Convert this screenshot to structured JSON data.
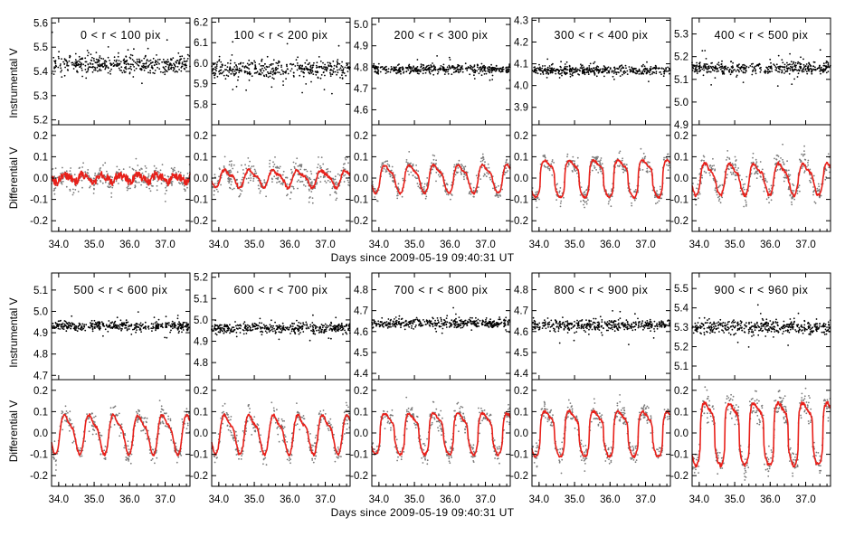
{
  "figure": {
    "ylabel_top": "Instrumental V",
    "ylabel_bottom": "Differential V",
    "xlabel": "Days since 2009-05-19 09:40:31 UT",
    "colors": {
      "model": "#e8201a",
      "instrumental_points": "#000000",
      "differential_points": "#7a7a7a",
      "frame": "#000000"
    }
  },
  "chart_data": [
    {
      "type": "scatter",
      "title": "0 < r < 100 pix",
      "xlabel": "",
      "x_ticks": [
        "34.0",
        "35.0",
        "36.0",
        "37.0"
      ],
      "xlim": [
        33.8,
        37.7
      ],
      "inst": {
        "ylim": [
          5.18,
          5.62
        ],
        "y_ticks": [
          "5.2",
          "5.3",
          "5.4",
          "5.5",
          "5.6"
        ],
        "level": 5.43,
        "scatter": 0.035
      },
      "diff": {
        "ylim": [
          -0.25,
          0.25
        ],
        "y_ticks": [
          "-0.2",
          "-0.1",
          "0.0",
          "0.1",
          "0.2"
        ],
        "amplitude": 0.02,
        "period": 0.52,
        "sharpness": 1,
        "noise": 0.025,
        "series": [
          {
            "label_visible": false,
            "kind": "points"
          },
          {
            "label_visible": false,
            "kind": "model_curve"
          }
        ]
      }
    },
    {
      "type": "scatter",
      "title": "100 < r < 200 pix",
      "xlabel": "",
      "x_ticks": [
        "34.0",
        "35.0",
        "36.0",
        "37.0"
      ],
      "xlim": [
        33.8,
        37.7
      ],
      "inst": {
        "ylim": [
          5.7,
          6.22
        ],
        "y_ticks": [
          "5.8",
          "5.9",
          "6.0",
          "6.1",
          "6.2"
        ],
        "level": 5.97,
        "scatter": 0.04
      },
      "diff": {
        "ylim": [
          -0.25,
          0.25
        ],
        "y_ticks": [
          "-0.2",
          "-0.1",
          "0.0",
          "0.1",
          "0.2"
        ],
        "amplitude": 0.045,
        "period": 0.68,
        "sharpness": 1,
        "noise": 0.03,
        "series": [
          {
            "label_visible": false,
            "kind": "points"
          },
          {
            "label_visible": false,
            "kind": "model_curve"
          }
        ]
      }
    },
    {
      "type": "scatter",
      "title": "200 < r < 300 pix",
      "xlabel": "",
      "x_ticks": [
        "34.0",
        "35.0",
        "36.0",
        "37.0"
      ],
      "xlim": [
        33.8,
        37.7
      ],
      "inst": {
        "ylim": [
          4.53,
          5.03
        ],
        "y_ticks": [
          "4.6",
          "4.7",
          "4.8",
          "4.9",
          "5.0"
        ],
        "level": 4.79,
        "scatter": 0.02
      },
      "diff": {
        "ylim": [
          -0.25,
          0.25
        ],
        "y_ticks": [
          "-0.2",
          "-0.1",
          "0.0",
          "0.1",
          "0.2"
        ],
        "amplitude": 0.07,
        "period": 0.69,
        "sharpness": 1.4,
        "noise": 0.02,
        "series": [
          {
            "label_visible": false,
            "kind": "points"
          },
          {
            "label_visible": false,
            "kind": "model_curve"
          }
        ]
      }
    },
    {
      "type": "scatter",
      "title": "300 < r < 400 pix",
      "xlabel": "",
      "x_ticks": [
        "34.0",
        "35.0",
        "36.0",
        "37.0"
      ],
      "xlim": [
        33.8,
        37.7
      ],
      "inst": {
        "ylim": [
          3.82,
          4.31
        ],
        "y_ticks": [
          "3.9",
          "4.0",
          "4.1",
          "4.2",
          "4.3"
        ],
        "level": 4.07,
        "scatter": 0.02
      },
      "diff": {
        "ylim": [
          -0.25,
          0.25
        ],
        "y_ticks": [
          "-0.2",
          "-0.1",
          "0.0",
          "0.1",
          "0.2"
        ],
        "amplitude": 0.09,
        "period": 0.69,
        "sharpness": 2.5,
        "noise": 0.02,
        "series": [
          {
            "label_visible": false,
            "kind": "points"
          },
          {
            "label_visible": false,
            "kind": "model_curve"
          }
        ]
      }
    },
    {
      "type": "scatter",
      "title": "400 < r < 500 pix",
      "xlabel": "",
      "x_ticks": [
        "34.0",
        "35.0",
        "36.0",
        "37.0"
      ],
      "xlim": [
        33.8,
        37.7
      ],
      "inst": {
        "ylim": [
          4.9,
          5.37
        ],
        "y_ticks": [
          "4.9",
          "5.0",
          "5.1",
          "5.2",
          "5.3"
        ],
        "level": 5.15,
        "scatter": 0.025
      },
      "diff": {
        "ylim": [
          -0.25,
          0.25
        ],
        "y_ticks": [
          "-0.2",
          "-0.1",
          "0.0",
          "0.1",
          "0.2"
        ],
        "amplitude": 0.08,
        "period": 0.69,
        "sharpness": 1.3,
        "noise": 0.03,
        "series": [
          {
            "label_visible": false,
            "kind": "points"
          },
          {
            "label_visible": false,
            "kind": "model_curve"
          }
        ]
      }
    },
    {
      "type": "scatter",
      "title": "500 < r < 600 pix",
      "xlabel": "",
      "x_ticks": [
        "34.0",
        "35.0",
        "36.0",
        "37.0"
      ],
      "xlim": [
        33.8,
        37.7
      ],
      "inst": {
        "ylim": [
          4.68,
          5.18
        ],
        "y_ticks": [
          "4.7",
          "4.8",
          "4.9",
          "5.0",
          "5.1"
        ],
        "level": 4.93,
        "scatter": 0.02
      },
      "diff": {
        "ylim": [
          -0.25,
          0.25
        ],
        "y_ticks": [
          "-0.2",
          "-0.1",
          "0.0",
          "0.1",
          "0.2"
        ],
        "amplitude": 0.1,
        "period": 0.69,
        "sharpness": 1.2,
        "noise": 0.025,
        "series": [
          {
            "label_visible": false,
            "kind": "points"
          },
          {
            "label_visible": false,
            "kind": "model_curve"
          }
        ]
      }
    },
    {
      "type": "scatter",
      "title": "600 < r < 700 pix",
      "xlabel": "",
      "x_ticks": [
        "34.0",
        "35.0",
        "36.0",
        "37.0"
      ],
      "xlim": [
        33.8,
        37.7
      ],
      "inst": {
        "ylim": [
          4.72,
          5.22
        ],
        "y_ticks": [
          "4.8",
          "4.9",
          "5.0",
          "5.1",
          "5.2"
        ],
        "level": 4.96,
        "scatter": 0.025
      },
      "diff": {
        "ylim": [
          -0.25,
          0.25
        ],
        "y_ticks": [
          "-0.2",
          "-0.1",
          "0.0",
          "0.1",
          "0.2"
        ],
        "amplitude": 0.1,
        "period": 0.69,
        "sharpness": 1.2,
        "noise": 0.025,
        "series": [
          {
            "label_visible": false,
            "kind": "points"
          },
          {
            "label_visible": false,
            "kind": "model_curve"
          }
        ]
      }
    },
    {
      "type": "scatter",
      "title": "700 < r < 800 pix",
      "xlabel": "",
      "x_ticks": [
        "34.0",
        "35.0",
        "36.0",
        "37.0"
      ],
      "xlim": [
        33.8,
        37.7
      ],
      "inst": {
        "ylim": [
          4.37,
          4.88
        ],
        "y_ticks": [
          "4.4",
          "4.5",
          "4.6",
          "4.7",
          "4.8"
        ],
        "level": 4.64,
        "scatter": 0.02
      },
      "diff": {
        "ylim": [
          -0.25,
          0.25
        ],
        "y_ticks": [
          "-0.2",
          "-0.1",
          "0.0",
          "0.1",
          "0.2"
        ],
        "amplitude": 0.1,
        "period": 0.69,
        "sharpness": 2.2,
        "noise": 0.025,
        "series": [
          {
            "label_visible": false,
            "kind": "points"
          },
          {
            "label_visible": false,
            "kind": "model_curve"
          }
        ]
      }
    },
    {
      "type": "scatter",
      "title": "800 < r < 900 pix",
      "xlabel": "",
      "x_ticks": [
        "34.0",
        "35.0",
        "36.0",
        "37.0"
      ],
      "xlim": [
        33.8,
        37.7
      ],
      "inst": {
        "ylim": [
          4.37,
          4.88
        ],
        "y_ticks": [
          "4.4",
          "4.5",
          "4.6",
          "4.7",
          "4.8"
        ],
        "level": 4.63,
        "scatter": 0.025
      },
      "diff": {
        "ylim": [
          -0.25,
          0.25
        ],
        "y_ticks": [
          "-0.2",
          "-0.1",
          "0.0",
          "0.1",
          "0.2"
        ],
        "amplitude": 0.11,
        "period": 0.69,
        "sharpness": 2.5,
        "noise": 0.025,
        "series": [
          {
            "label_visible": false,
            "kind": "points"
          },
          {
            "label_visible": false,
            "kind": "model_curve"
          }
        ]
      }
    },
    {
      "type": "scatter",
      "title": "900 < r < 960 pix",
      "xlabel": "",
      "x_ticks": [
        "34.0",
        "35.0",
        "36.0",
        "37.0"
      ],
      "xlim": [
        33.8,
        37.7
      ],
      "inst": {
        "ylim": [
          5.03,
          5.58
        ],
        "y_ticks": [
          "5.1",
          "5.2",
          "5.3",
          "5.4",
          "5.5"
        ],
        "level": 5.3,
        "scatter": 0.035
      },
      "diff": {
        "ylim": [
          -0.25,
          0.25
        ],
        "y_ticks": [
          "-0.2",
          "-0.1",
          "0.0",
          "0.1",
          "0.2"
        ],
        "amplitude": 0.15,
        "period": 0.69,
        "sharpness": 3,
        "noise": 0.035,
        "series": [
          {
            "label_visible": false,
            "kind": "points"
          },
          {
            "label_visible": false,
            "kind": "model_curve"
          }
        ]
      }
    }
  ]
}
